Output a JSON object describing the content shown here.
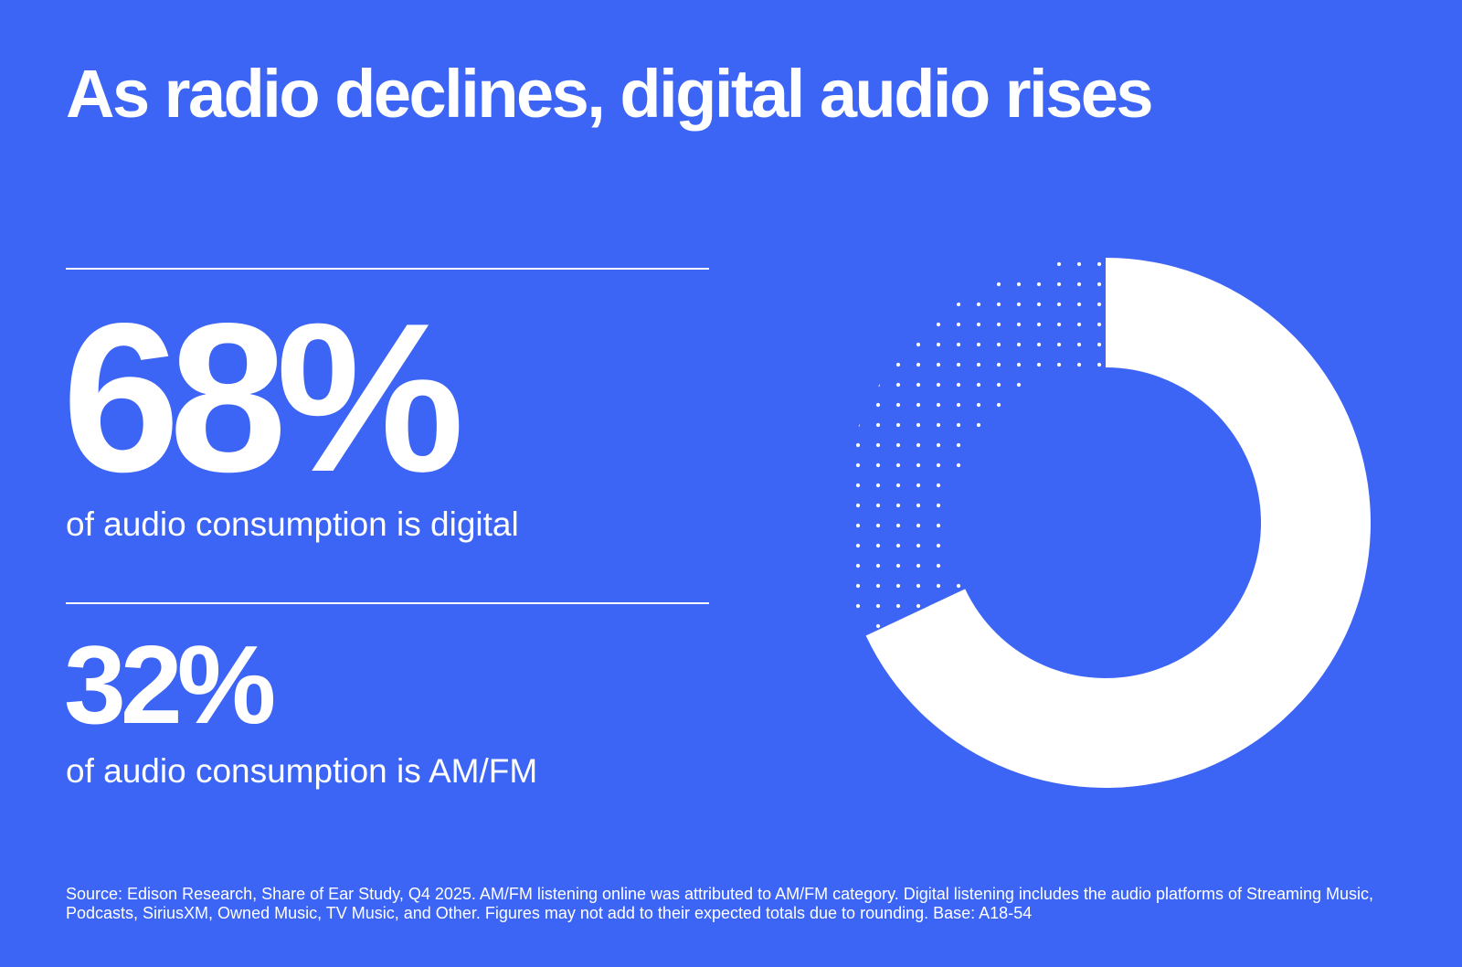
{
  "title": "As radio declines, digital audio rises",
  "stats": [
    {
      "value": "68%",
      "caption": "of audio consumption is digital"
    },
    {
      "value": "32%",
      "caption": "of audio consumption is AM/FM"
    }
  ],
  "source": "Source: Edison Research, Share of Ear Study, Q4 2025. AM/FM listening online was attributed to AM/FM category. Digital listening includes the audio platforms of Streaming Music, Podcasts, SiriusXM, Owned Music, TV Music, and Other. Figures may not add to their expected totals due to rounding. Base: A18-54",
  "colors": {
    "background": "#3d65f5",
    "foreground": "#ffffff"
  },
  "chart_data": {
    "type": "pie",
    "style": "donut",
    "categories": [
      "Digital",
      "AM/FM"
    ],
    "values": [
      68,
      32
    ],
    "unit": "%",
    "series_styles": [
      "solid-white",
      "dotted-white"
    ],
    "legend": "none"
  }
}
